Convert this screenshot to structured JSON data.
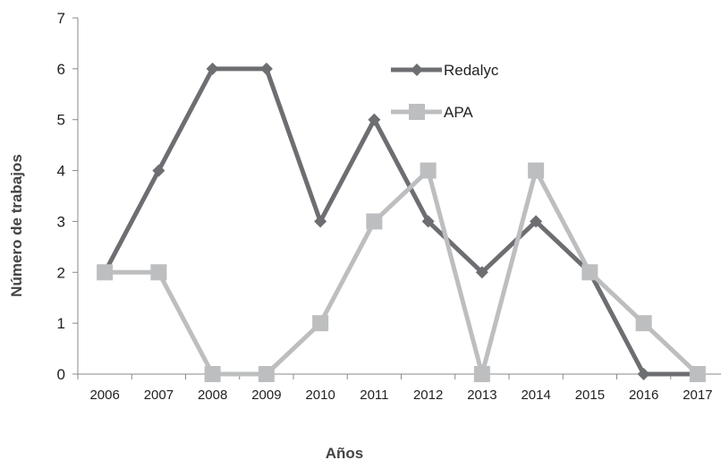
{
  "chart_data": {
    "type": "line",
    "title": "",
    "xlabel": "Años",
    "ylabel": "Número de trabajos",
    "x": [
      "2006",
      "2007",
      "2008",
      "2009",
      "2010",
      "2011",
      "2012",
      "2013",
      "2014",
      "2015",
      "2016",
      "2017"
    ],
    "ylim": [
      0,
      7
    ],
    "yticks": [
      0,
      1,
      2,
      3,
      4,
      5,
      6,
      7
    ],
    "grid": false,
    "legend_position": "top-right",
    "series": [
      {
        "name": "Redalyc",
        "marker": "diamond",
        "color": "#6d6e71",
        "values": [
          2,
          4,
          6,
          6,
          3,
          5,
          3,
          2,
          3,
          2,
          0,
          0
        ]
      },
      {
        "name": "APA",
        "marker": "square",
        "color": "#bcbec0",
        "values": [
          2,
          2,
          0,
          0,
          1,
          3,
          4,
          0,
          4,
          2,
          1,
          0
        ]
      }
    ]
  }
}
